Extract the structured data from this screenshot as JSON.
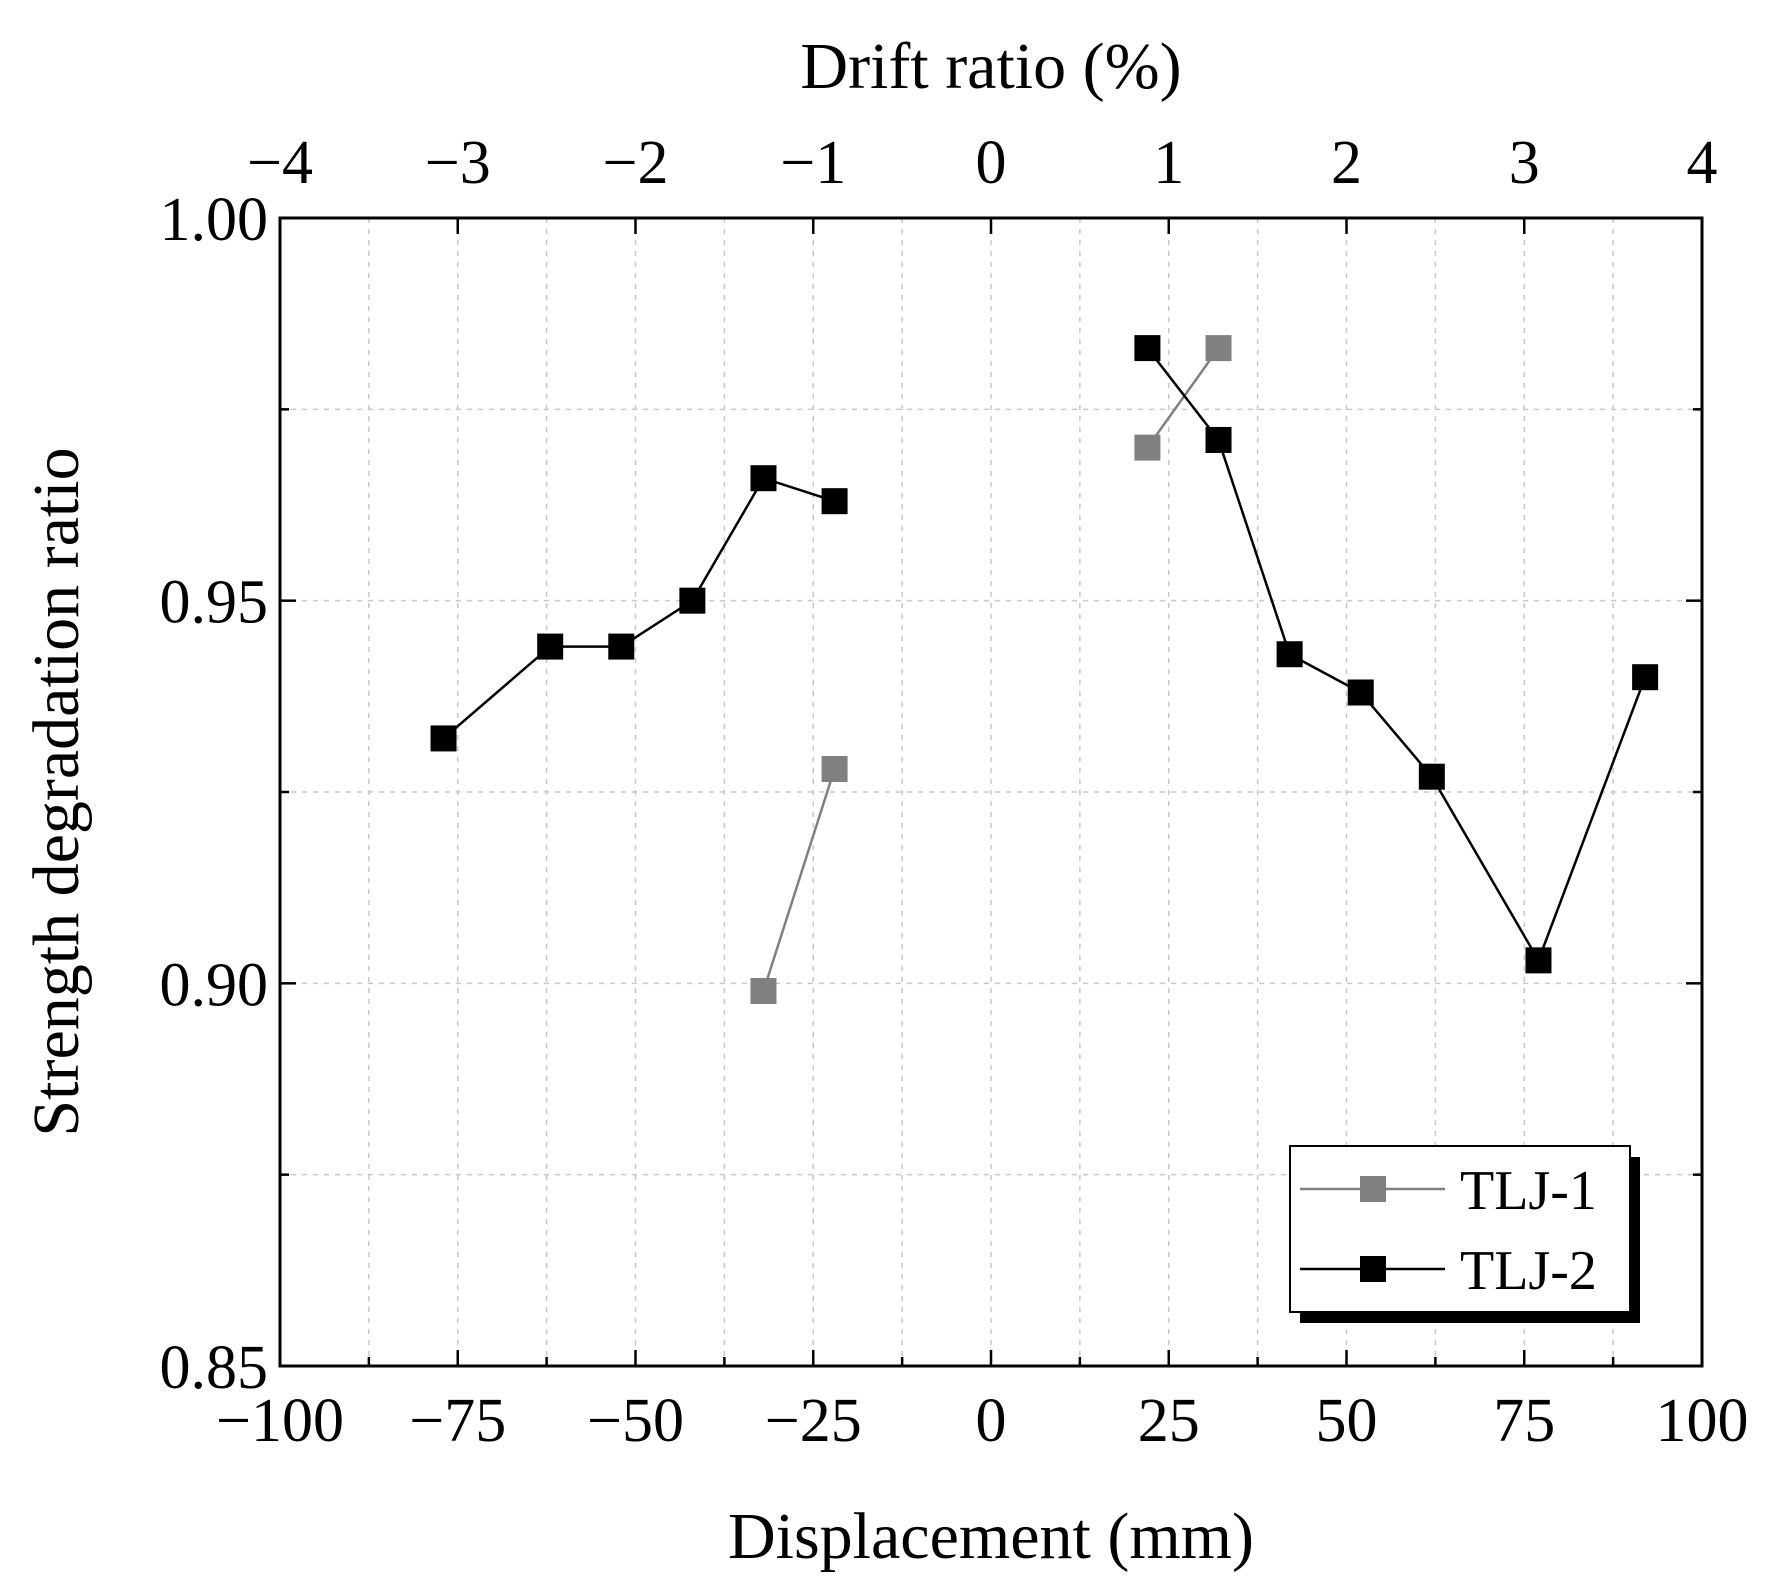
{
  "chart_data": {
    "type": "line",
    "title": "",
    "xlabel": "Displacement (mm)",
    "ylabel": "Strength degradation ratio",
    "x2label": "Drift ratio (%)",
    "xlim": [
      -100,
      100
    ],
    "ylim": [
      0.85,
      1.0
    ],
    "x2lim": [
      -4,
      4
    ],
    "x_ticks": [
      -100,
      -75,
      -50,
      -25,
      0,
      25,
      50,
      75,
      100
    ],
    "x_tick_labels": [
      "−100",
      "−75",
      "−50",
      "−25",
      "0",
      "25",
      "50",
      "75",
      "100"
    ],
    "x2_ticks": [
      -4,
      -3,
      -2,
      -1,
      0,
      1,
      2,
      3,
      4
    ],
    "x2_tick_labels": [
      "−4",
      "−3",
      "−2",
      "−1",
      "0",
      "1",
      "2",
      "3",
      "4"
    ],
    "y_ticks": [
      0.85,
      0.9,
      0.95,
      1.0
    ],
    "y_tick_labels": [
      "0.85",
      "0.90",
      "0.95",
      "1.00"
    ],
    "grid": true,
    "legend_position": "bottom-right",
    "series": [
      {
        "name": "TLJ-1",
        "color": "#808080",
        "segments": [
          [
            {
              "x": -32,
              "y": 0.899
            },
            {
              "x": -22,
              "y": 0.928
            }
          ],
          [
            {
              "x": 22,
              "y": 0.97
            },
            {
              "x": 32,
              "y": 0.983
            }
          ]
        ]
      },
      {
        "name": "TLJ-2",
        "color": "#000000",
        "segments": [
          [
            {
              "x": -77,
              "y": 0.932
            },
            {
              "x": -62,
              "y": 0.944
            },
            {
              "x": -52,
              "y": 0.944
            },
            {
              "x": -42,
              "y": 0.95
            },
            {
              "x": -32,
              "y": 0.966
            },
            {
              "x": -22,
              "y": 0.963
            }
          ],
          [
            {
              "x": 22,
              "y": 0.983
            },
            {
              "x": 32,
              "y": 0.971
            },
            {
              "x": 42,
              "y": 0.943
            },
            {
              "x": 52,
              "y": 0.938
            },
            {
              "x": 62,
              "y": 0.927
            },
            {
              "x": 77,
              "y": 0.903
            },
            {
              "x": 92,
              "y": 0.94
            }
          ]
        ]
      }
    ]
  }
}
